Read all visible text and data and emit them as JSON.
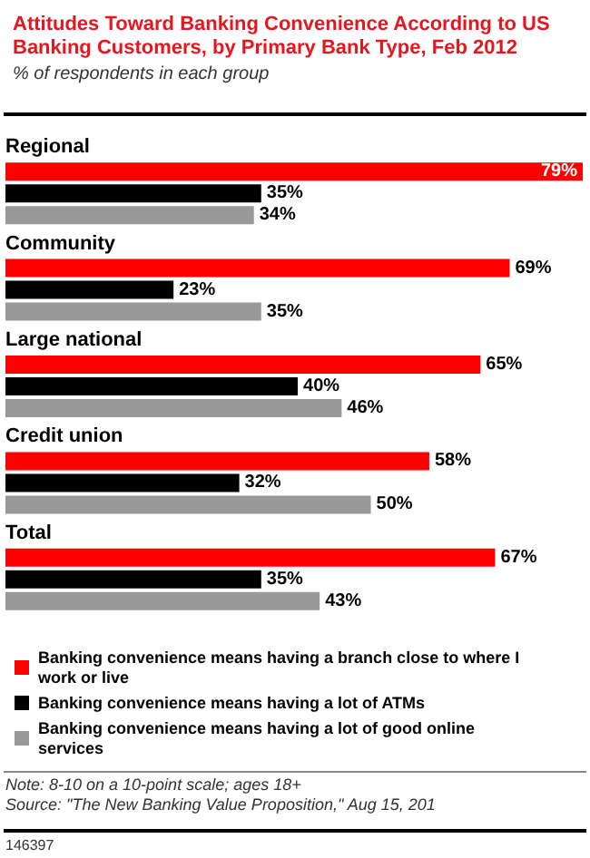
{
  "chart_data": {
    "type": "bar",
    "orientation": "horizontal",
    "title": "Attitudes Toward Banking Convenience According to US Banking Customers, by Primary Bank Type, Feb 2012",
    "subtitle": "% of respondents in each group",
    "categories": [
      "Regional",
      "Community",
      "Large national",
      "Credit union",
      "Total"
    ],
    "series": [
      {
        "name": "Banking convenience means having a branch close to where I work or live",
        "color": "#ff0000",
        "values": [
          79,
          69,
          65,
          58,
          67
        ],
        "value_labels": [
          "79%",
          "69%",
          "65%",
          "58%",
          "67%"
        ]
      },
      {
        "name": "Banking convenience means having a lot of ATMs",
        "color": "#000000",
        "values": [
          35,
          23,
          40,
          32,
          35
        ],
        "value_labels": [
          "35%",
          "23%",
          "40%",
          "32%",
          "35%"
        ]
      },
      {
        "name": "Banking convenience means having a lot of good online services",
        "color": "#999999",
        "values": [
          34,
          35,
          46,
          50,
          43
        ],
        "value_labels": [
          "34%",
          "35%",
          "46%",
          "50%",
          "43%"
        ]
      }
    ],
    "legend": "bottom",
    "annotations": [
      "Note: 8-10 on a 10-point scale; ages 18+",
      "Source: \"The New Banking Value Proposition,\" Aug 15, 201",
      "146397"
    ]
  }
}
